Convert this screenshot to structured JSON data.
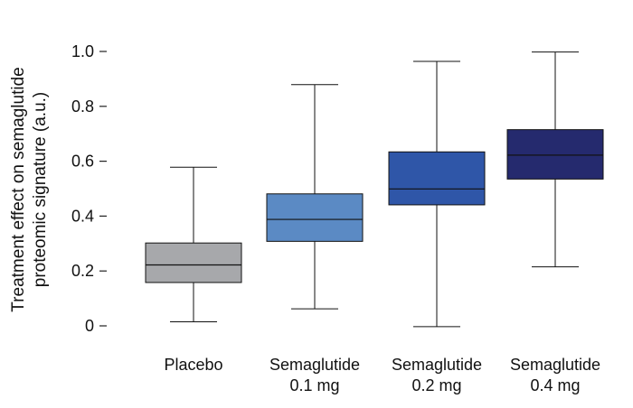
{
  "chart_data": {
    "type": "box",
    "ylabel_lines": [
      "Treatment effect on semaglutide",
      "proteomic signature (a.u.)"
    ],
    "ylim": [
      0,
      1.0
    ],
    "yticks": [
      {
        "value": 0,
        "label": "0"
      },
      {
        "value": 0.2,
        "label": "0.2"
      },
      {
        "value": 0.4,
        "label": "0.4"
      },
      {
        "value": 0.6,
        "label": "0.6"
      },
      {
        "value": 0.8,
        "label": "0.8"
      },
      {
        "value": 1.0,
        "label": "1.0"
      }
    ],
    "grid": false,
    "groups": [
      {
        "label_lines": [
          "Placebo"
        ],
        "color": "#a7a8ab",
        "whisker_low": 0.015,
        "q1": 0.158,
        "median": 0.222,
        "q3": 0.302,
        "whisker_high": 0.578
      },
      {
        "label_lines": [
          "Semaglutide",
          "0.1 mg"
        ],
        "color": "#5b8ac4",
        "whisker_low": 0.062,
        "q1": 0.308,
        "median": 0.388,
        "q3": 0.481,
        "whisker_high": 0.879
      },
      {
        "label_lines": [
          "Semaglutide",
          "0.2 mg"
        ],
        "color": "#2f56a8",
        "whisker_low": -0.003,
        "q1": 0.441,
        "median": 0.499,
        "q3": 0.634,
        "whisker_high": 0.964
      },
      {
        "label_lines": [
          "Semaglutide",
          "0.4 mg"
        ],
        "color": "#252a6e",
        "whisker_low": 0.215,
        "q1": 0.535,
        "median": 0.622,
        "q3": 0.715,
        "whisker_high": 0.998
      }
    ]
  }
}
